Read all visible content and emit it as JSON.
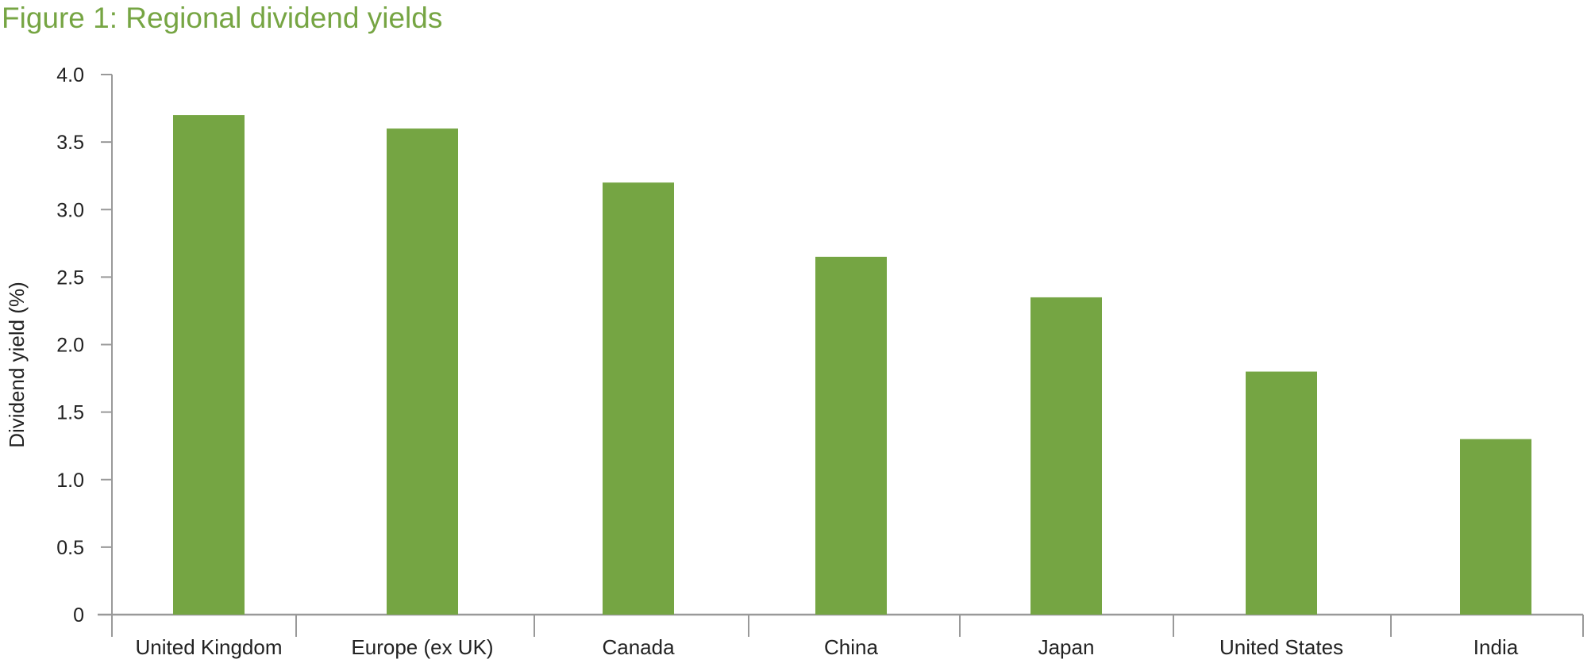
{
  "chart_data": {
    "type": "bar",
    "title": "Figure 1: Regional dividend yields",
    "xlabel": "",
    "ylabel": "Dividend yield (%)",
    "categories": [
      "United Kingdom",
      "Europe (ex UK)",
      "Canada",
      "China",
      "Japan",
      "United States",
      "India"
    ],
    "values": [
      3.7,
      3.6,
      3.2,
      2.65,
      2.35,
      1.8,
      1.3
    ],
    "ylim": [
      0,
      4.0
    ],
    "yticks": [
      "0",
      "0.5",
      "1.0",
      "1.5",
      "2.0",
      "2.5",
      "3.0",
      "3.5",
      "4.0"
    ],
    "grid": false,
    "legend": "none",
    "colors": {
      "bar": "#75a543",
      "title": "#76a543",
      "axis": "#999999"
    }
  }
}
